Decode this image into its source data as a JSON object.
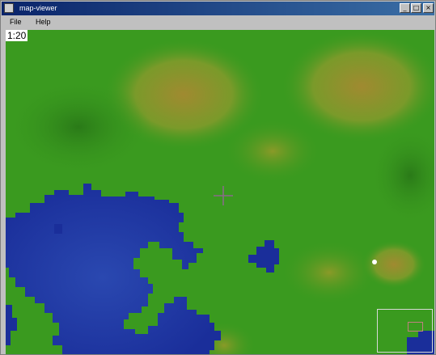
{
  "window": {
    "title": "map-viewer",
    "controls": {
      "minimize": "_",
      "maximize": "□",
      "close": "×"
    }
  },
  "menu": {
    "items": [
      {
        "label": "File"
      },
      {
        "label": "Help"
      }
    ]
  },
  "map": {
    "zoom_label": "1:20",
    "colors": {
      "grass": "#3a9a1f",
      "grass_dark": "#2e8a1a",
      "highland": "#7a9a2a",
      "peak": "#a08a30",
      "water": "#1a2e9a",
      "water_light": "#2a48b0",
      "cursor": "#8a6a8a",
      "marker": "#ffffff"
    }
  }
}
